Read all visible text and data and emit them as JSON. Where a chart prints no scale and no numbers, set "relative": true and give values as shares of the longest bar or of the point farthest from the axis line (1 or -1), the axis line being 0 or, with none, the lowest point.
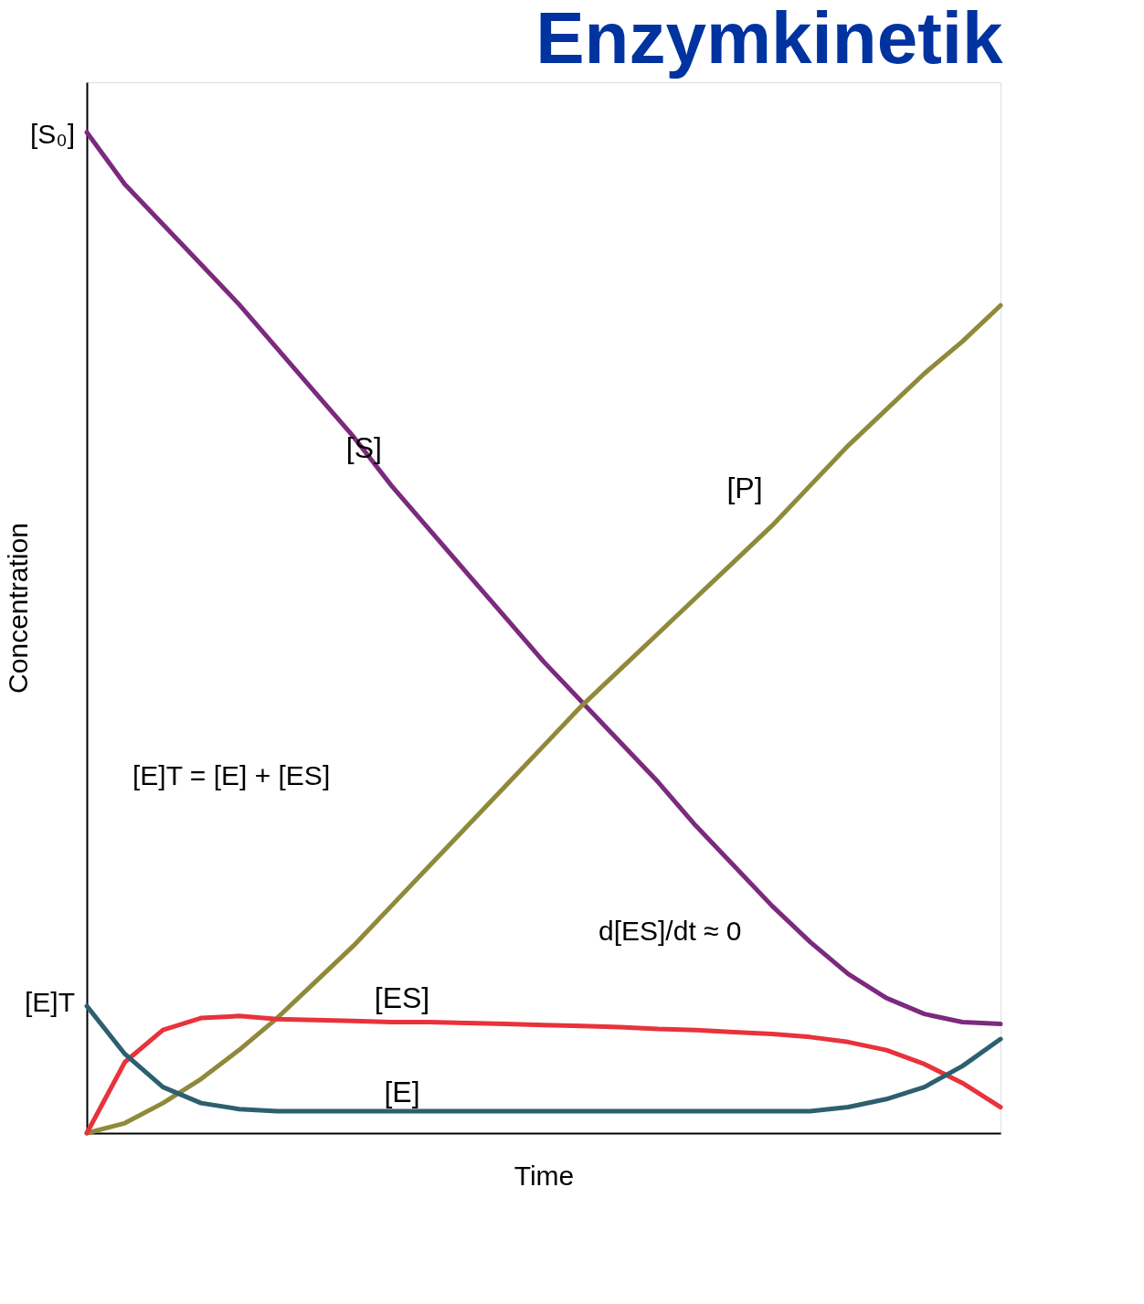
{
  "chart_data": {
    "type": "line",
    "title": "Enzymkinetik",
    "xlabel": "Time",
    "ylabel": "Concentration",
    "relative": true,
    "legend": false,
    "grid": false,
    "marker": "none",
    "line_style": "solid",
    "categories": [
      null,
      null,
      null,
      null,
      null,
      null,
      null,
      null,
      null,
      null,
      null,
      null,
      null,
      null,
      null,
      null,
      null,
      null,
      null,
      null,
      null,
      null,
      null,
      null,
      null
    ],
    "series": [
      {
        "name": "[S]",
        "color": "#7b2a7e",
        "values": [
          1.0,
          0.948,
          0.908,
          0.868,
          0.828,
          0.784,
          0.74,
          0.696,
          0.647,
          0.603,
          0.559,
          0.515,
          0.471,
          0.431,
          0.391,
          0.351,
          0.307,
          0.267,
          0.227,
          0.191,
          0.159,
          0.135,
          0.119,
          0.111,
          0.109
        ]
      },
      {
        "name": "[P]",
        "color": "#8f8a3a",
        "values": [
          0,
          0.01,
          0.03,
          0.054,
          0.083,
          0.115,
          0.151,
          0.187,
          0.227,
          0.267,
          0.307,
          0.347,
          0.387,
          0.427,
          0.463,
          0.499,
          0.535,
          0.571,
          0.607,
          0.647,
          0.687,
          0.723,
          0.759,
          0.791,
          0.827
        ]
      },
      {
        "name": "[ES]",
        "color": "#e8323c",
        "values": [
          0,
          0.071,
          0.103,
          0.115,
          0.117,
          0.114,
          0.113,
          0.112,
          0.111,
          0.111,
          0.11,
          0.109,
          0.108,
          0.107,
          0.106,
          0.104,
          0.103,
          0.101,
          0.099,
          0.096,
          0.091,
          0.083,
          0.069,
          0.05,
          0.026
        ]
      },
      {
        "name": "[E]",
        "color": "#2d5f6e",
        "values": [
          0.127,
          0.079,
          0.046,
          0.03,
          0.024,
          0.022,
          0.022,
          0.022,
          0.022,
          0.022,
          0.022,
          0.022,
          0.022,
          0.022,
          0.022,
          0.022,
          0.022,
          0.022,
          0.022,
          0.022,
          0.026,
          0.034,
          0.046,
          0.067,
          0.094
        ]
      }
    ],
    "annotations": [
      "[S₀]",
      "[E]T",
      "[E]T = [E] + [ES]",
      "d[ES]/dt ≈ 0"
    ]
  }
}
